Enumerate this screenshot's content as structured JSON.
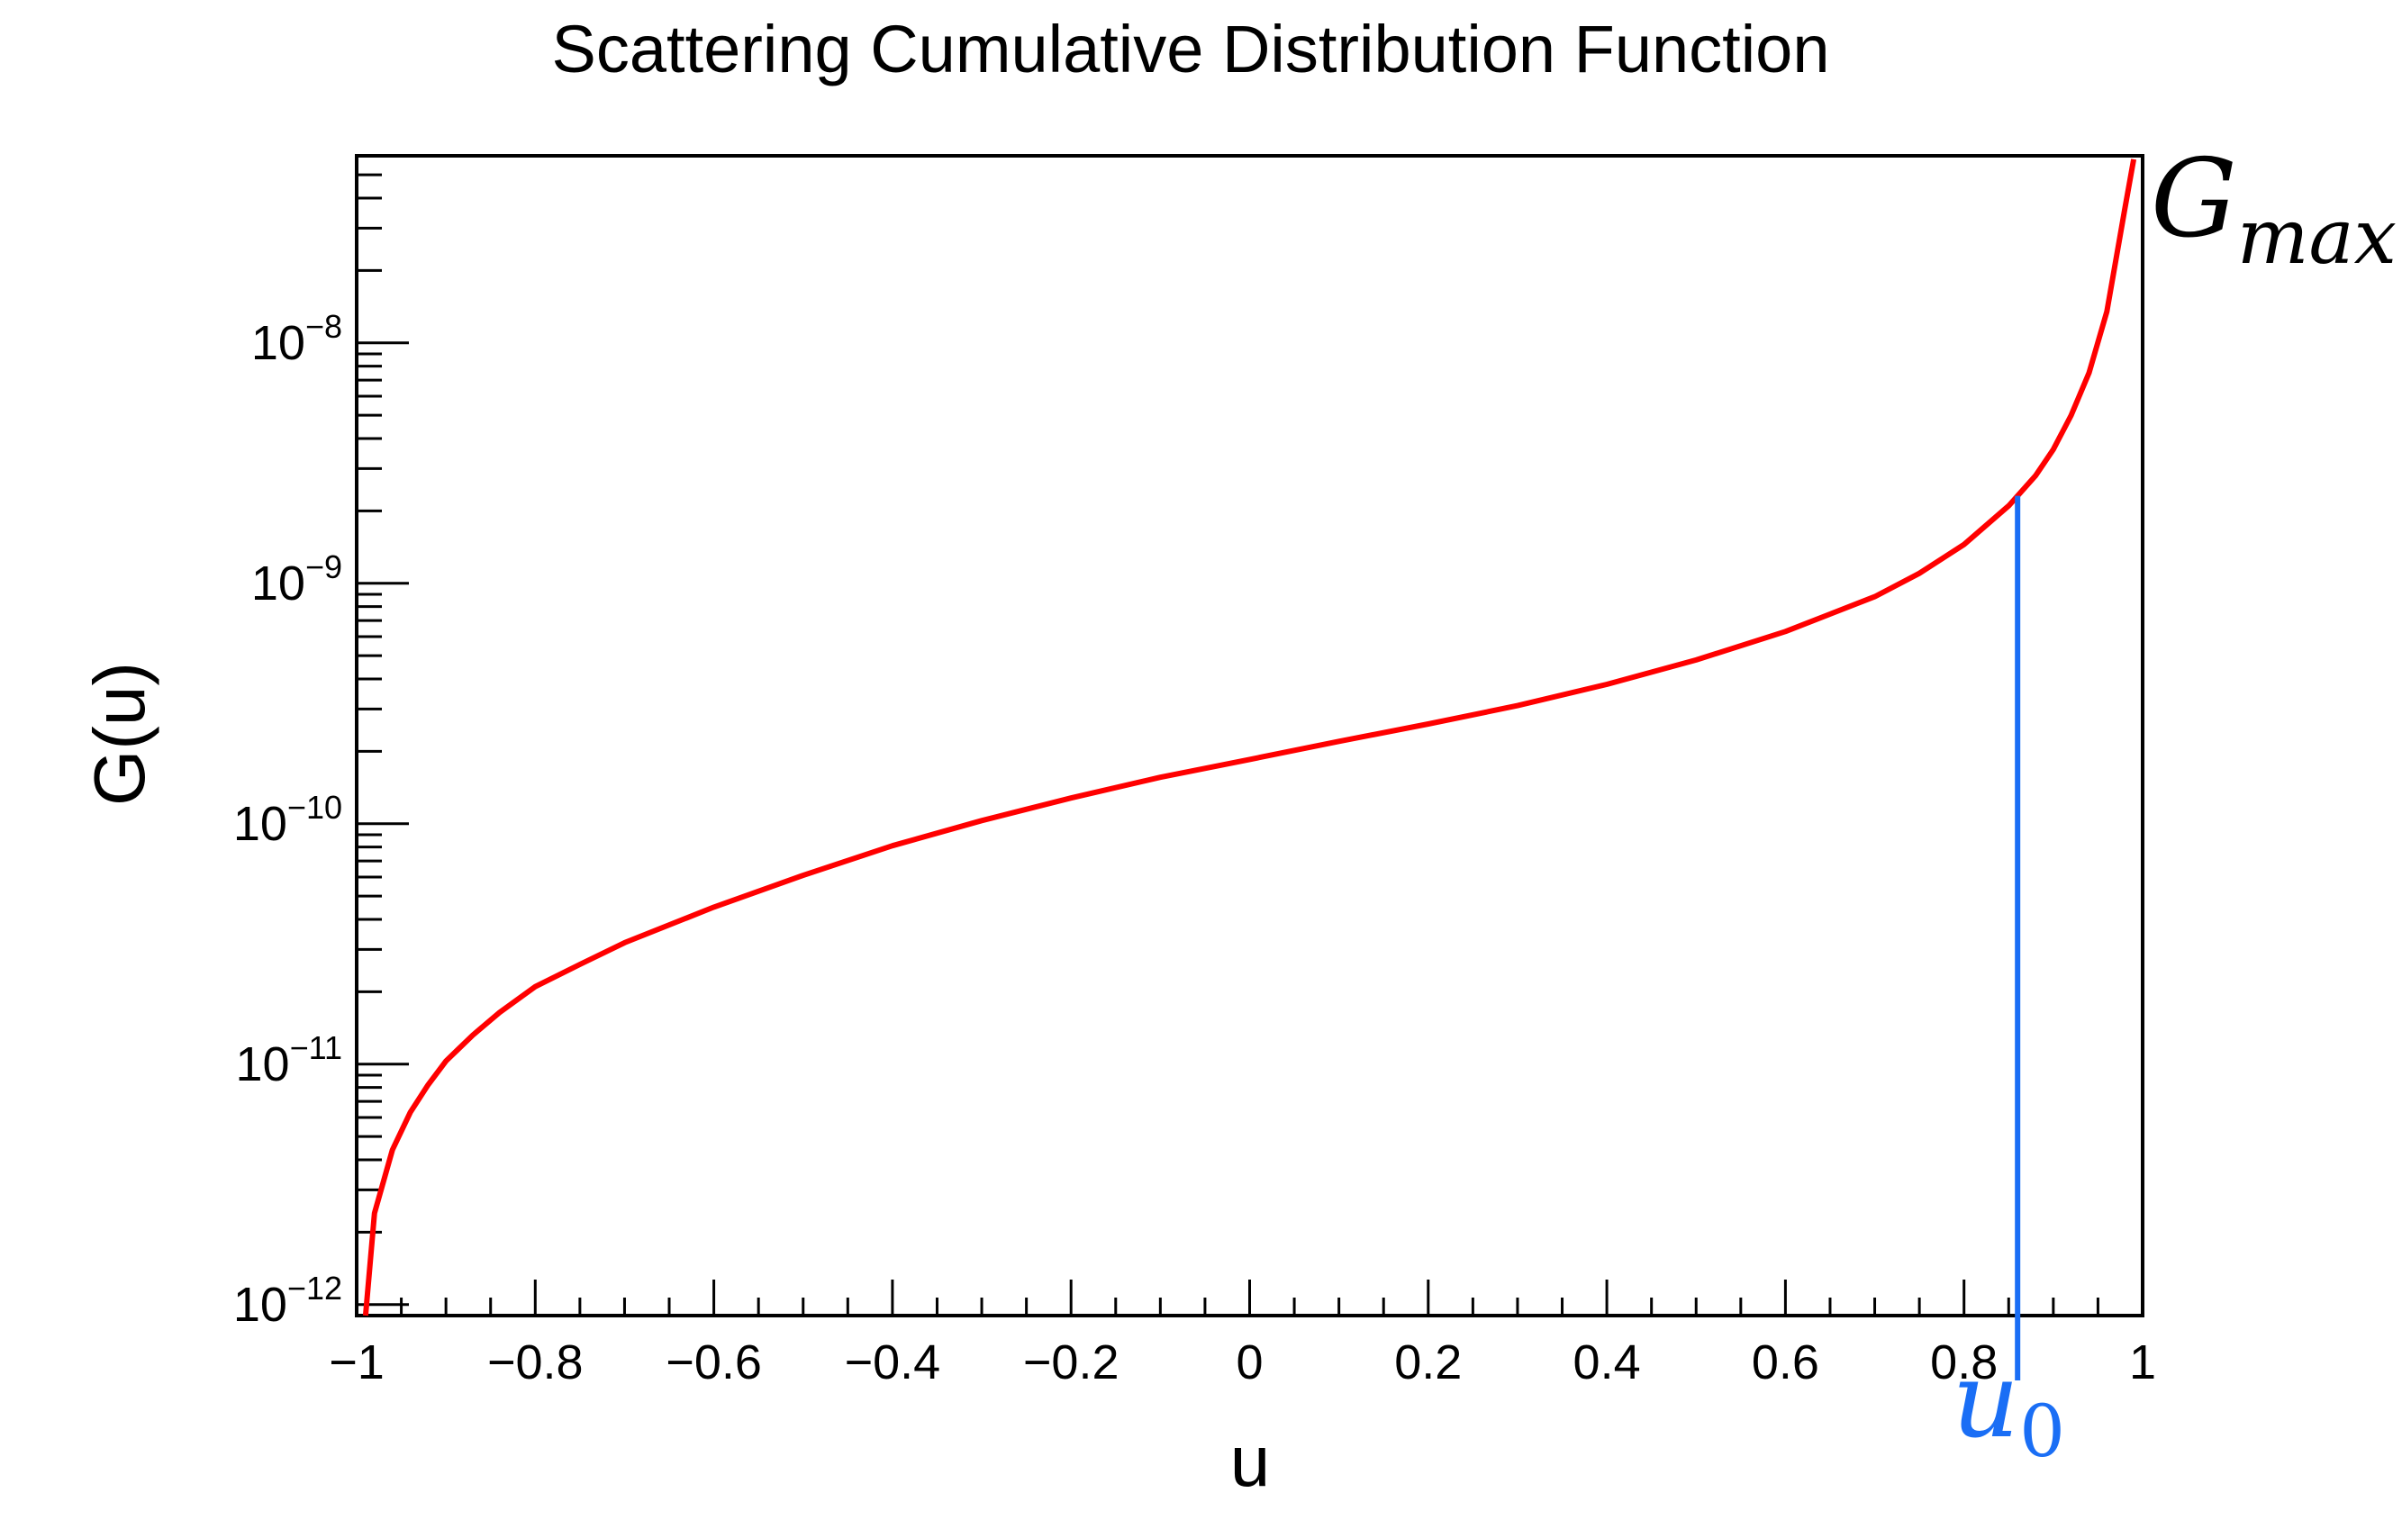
{
  "chart_data": {
    "type": "line",
    "title": "Scattering Cumulative Distribution Function",
    "xlabel": "u",
    "ylabel": "G(u)",
    "xlim": [
      -1,
      1
    ],
    "ylim": [
      9e-13,
      6e-08
    ],
    "y_scale": "log",
    "grid": false,
    "x_ticks": [
      -1,
      -0.8,
      -0.6,
      -0.4,
      -0.2,
      0,
      0.2,
      0.4,
      0.6,
      0.8,
      1
    ],
    "x_tick_labels": [
      "−1",
      "−0.8",
      "−0.6",
      "−0.4",
      "−0.2",
      "0",
      "0.2",
      "0.4",
      "0.6",
      "0.8",
      "1"
    ],
    "y_ticks": [
      {
        "value": 1e-12,
        "base": "10",
        "exp": "−12"
      },
      {
        "value": 1e-11,
        "base": "10",
        "exp": "−11"
      },
      {
        "value": 1e-10,
        "base": "10",
        "exp": "−10"
      },
      {
        "value": 1e-09,
        "base": "10",
        "exp": "−9"
      },
      {
        "value": 1e-08,
        "base": "10",
        "exp": "−8"
      }
    ],
    "series": [
      {
        "color": "#ff0000",
        "x": [
          -0.99,
          -0.98,
          -0.96,
          -0.94,
          -0.92,
          -0.9,
          -0.87,
          -0.84,
          -0.8,
          -0.75,
          -0.7,
          -0.6,
          -0.5,
          -0.4,
          -0.3,
          -0.2,
          -0.1,
          0,
          0.1,
          0.2,
          0.3,
          0.4,
          0.5,
          0.6,
          0.7,
          0.75,
          0.8,
          0.85,
          0.88,
          0.9,
          0.92,
          0.94,
          0.96,
          0.98,
          0.99
        ],
        "y": [
          9e-13,
          2.4e-12,
          4.4e-12,
          6.3e-12,
          8.2e-12,
          1.03e-11,
          1.32e-11,
          1.64e-11,
          2.1e-11,
          2.6e-11,
          3.2e-11,
          4.5e-11,
          6.1e-11,
          8.1e-11,
          1.03e-10,
          1.28e-10,
          1.56e-10,
          1.85e-10,
          2.2e-10,
          2.6e-10,
          3.1e-10,
          3.8e-10,
          4.8e-10,
          6.3e-10,
          8.8e-10,
          1.1e-09,
          1.45e-09,
          2.1e-09,
          2.8e-09,
          3.6e-09,
          5e-09,
          7.5e-09,
          1.35e-08,
          3.6e-08,
          5.8e-08
        ]
      }
    ],
    "annotations": [
      {
        "label": "u",
        "subscript": "0",
        "x": 0.86,
        "color": "#1a6ef5"
      },
      {
        "label": "G",
        "subscript": "max",
        "color": "#000000"
      }
    ]
  }
}
